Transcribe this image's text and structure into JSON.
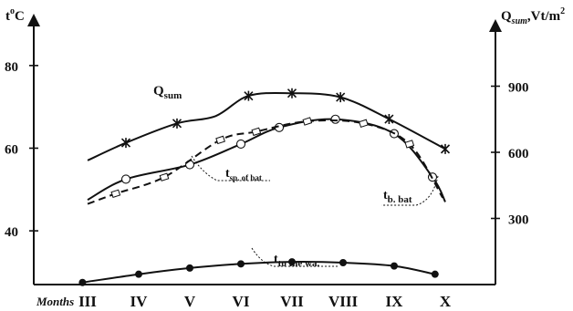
{
  "chart_data": {
    "type": "line",
    "categories": [
      "III",
      "IV",
      "V",
      "VI",
      "VII",
      "VIII",
      "IX",
      "X"
    ],
    "x_axis": {
      "prefix_label": "Months"
    },
    "left_axis": {
      "title": "t",
      "title_sup": "o",
      "title_rest": "C",
      "ticks": [
        40,
        60,
        80
      ],
      "range": [
        27,
        91
      ]
    },
    "right_axis": {
      "title": "Q",
      "title_sub": "sum",
      "title_rest": ",Vt/m",
      "title_sup": "2",
      "ticks": [
        300,
        600,
        900
      ],
      "range": [
        0,
        1200
      ]
    },
    "series": [
      {
        "key": "qsum",
        "name": "Q",
        "name_sub": "sum",
        "axis": "right",
        "style": "solid",
        "marker": "star",
        "x": [
          0,
          0.75,
          1.75,
          2.5,
          3.15,
          4,
          4.95,
          5.9,
          7
        ],
        "values": [
          563,
          643,
          731,
          764,
          856,
          868,
          850,
          751,
          615
        ],
        "marked": [
          false,
          true,
          true,
          false,
          true,
          true,
          true,
          true,
          true
        ]
      },
      {
        "key": "tbbat",
        "name": "t",
        "name_sub": "b. bat",
        "axis": "left",
        "style": "solid",
        "marker": "circle",
        "x": [
          0,
          0.75,
          2,
          3,
          3.75,
          4.85,
          6,
          6.75,
          7
        ],
        "values": [
          47.5,
          52.5,
          56,
          61,
          65,
          67,
          63.5,
          53,
          47
        ],
        "marked": [
          false,
          true,
          true,
          true,
          true,
          true,
          true,
          true,
          false
        ]
      },
      {
        "key": "tspbat",
        "name": "t",
        "name_sub": "sp. of bat",
        "axis": "left",
        "style": "dashed",
        "marker": "square",
        "x": [
          0,
          0.55,
          1.5,
          2.6,
          3.3,
          4.3,
          5.4,
          6.3,
          6.95
        ],
        "values": [
          46.5,
          49,
          53,
          62,
          64,
          66.5,
          66,
          61,
          48
        ],
        "marked": [
          false,
          true,
          true,
          true,
          true,
          true,
          true,
          true,
          false
        ]
      },
      {
        "key": "twater",
        "name": "t",
        "name_sub": "to the wa.",
        "axis": "left",
        "style": "solid",
        "marker": "dot",
        "x": [
          -0.1,
          1,
          2,
          3,
          4,
          5,
          6,
          6.8
        ],
        "values": [
          27.5,
          29.5,
          31,
          32,
          32.5,
          32.3,
          31.5,
          29.5
        ],
        "marked": [
          true,
          true,
          true,
          true,
          true,
          true,
          true,
          true
        ]
      }
    ],
    "grid": false,
    "legend": "inline labels"
  }
}
